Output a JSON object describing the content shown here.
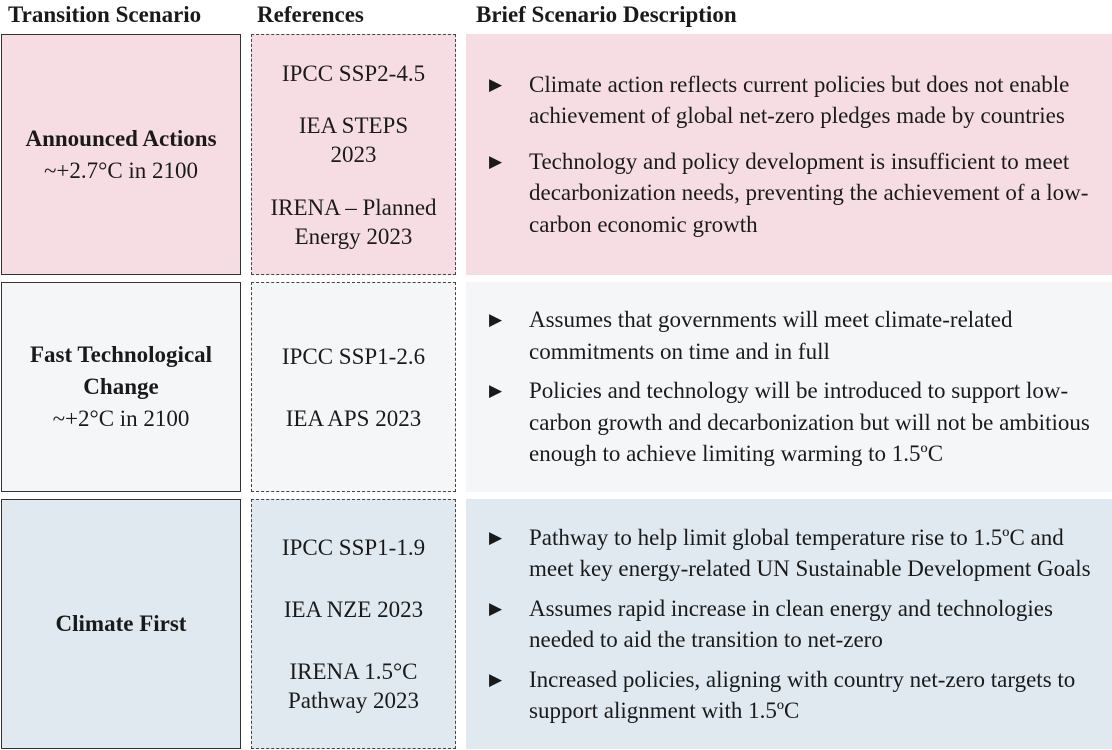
{
  "headers": {
    "scenario": "Transition Scenario",
    "references": "References",
    "description": "Brief Scenario Description"
  },
  "bullet_glyph": "▶",
  "colors": {
    "announced_actions": "#f6dde3",
    "fast_tech_change": "#f5f6f8",
    "climate_first": "#dfe9ef"
  },
  "rows": [
    {
      "scenario_title": "Announced Actions",
      "scenario_temp": "~+2.7°C in 2100",
      "references": [
        "IPCC SSP2-4.5",
        "IEA STEPS 2023",
        "IRENA – Planned Energy 2023"
      ],
      "bullets": [
        "Climate action reflects current policies but does not enable achievement of global net-zero pledges made by countries",
        "Technology and policy development is insufficient to meet decarbonization needs, preventing the achievement of a low-carbon economic growth"
      ]
    },
    {
      "scenario_title": "Fast Technological Change",
      "scenario_temp": "~+2°C in 2100",
      "references": [
        "IPCC SSP1-2.6",
        "IEA APS 2023"
      ],
      "bullets": [
        "Assumes that governments will meet climate-related commitments on time and in full",
        "Policies and technology will be introduced to support low-carbon growth and decarbonization but will not be ambitious enough to achieve limiting warming to 1.5ºC"
      ]
    },
    {
      "scenario_title": "Climate First",
      "scenario_temp": "",
      "references": [
        "IPCC SSP1-1.9",
        "IEA NZE 2023",
        "IRENA 1.5°C Pathway 2023"
      ],
      "bullets": [
        "Pathway to help limit global temperature rise to 1.5ºC and meet key energy-related UN Sustainable Development Goals",
        "Assumes rapid increase in clean energy and technologies needed to aid the transition to net-zero",
        "Increased policies, aligning with country net-zero targets to support alignment with 1.5ºC"
      ]
    }
  ]
}
